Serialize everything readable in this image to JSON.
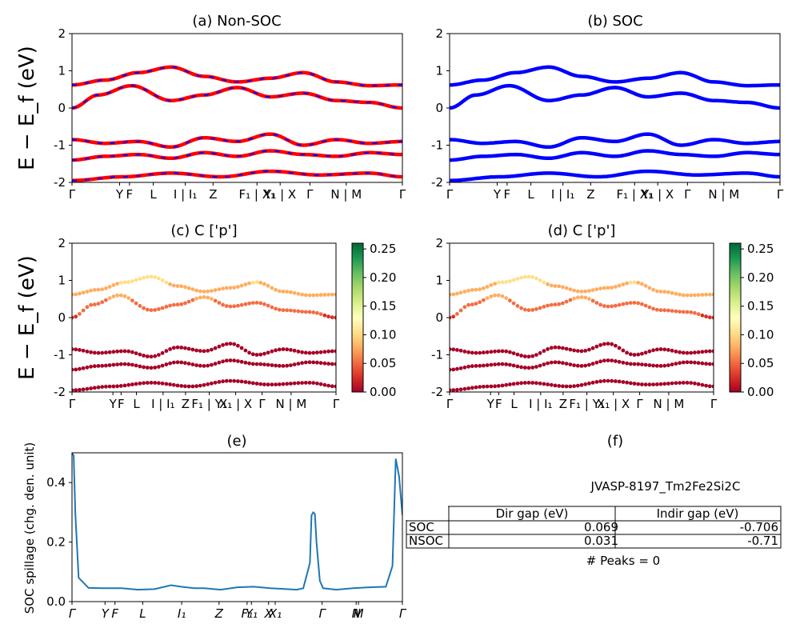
{
  "material_label": "JVASP-8197_Tm2Fe2Si2C",
  "peaks_text": "# Peaks = 0",
  "ylabel_energy": "E − E_f (eV)",
  "colors": {
    "nonsoc_a": "#ff0000",
    "nonsoc_b": "#0000ff",
    "soc": "#0000ff",
    "spillage": "#1f77b4",
    "cmap": [
      "#a50026",
      "#d73027",
      "#f46d43",
      "#fdae61",
      "#fee08b",
      "#ffffbf",
      "#d9ef8b",
      "#a6d96a",
      "#66bd63",
      "#1a9850",
      "#006837"
    ]
  },
  "kpath_labels_ab": [
    "Γ",
    "Y",
    "F",
    "L",
    "I | I₁",
    "Z",
    "F₁ | X₁",
    "Y₁ | X",
    "Γ",
    "N | M",
    "Γ"
  ],
  "kpath_labels_cd": [
    "Γ",
    "Y",
    "F",
    "L",
    "I | I₁",
    "Z",
    "F₁ | Y₁",
    "X₁ | X",
    "Γ",
    "N | M",
    "Γ"
  ],
  "kpath_labels_e": [
    "Γ",
    "Y",
    "F",
    "L",
    "I₁",
    "Z",
    "F₁",
    "Y₁",
    "X",
    "X₁",
    "Γ",
    "N",
    "M",
    "Γ"
  ],
  "chart_data": [
    {
      "id": "a",
      "type": "line",
      "title": "(a) Non-SOC",
      "ylabel": "E − E_f (eV)",
      "ylim": [
        -2,
        2
      ],
      "yticks": [
        -2,
        -1,
        0,
        1,
        2
      ],
      "x_labels": [
        "Γ",
        "Y",
        "F",
        "L",
        "I | I₁",
        "Z",
        "F₁ | X₁",
        "Y₁ | X",
        "Γ",
        "N | M",
        "Γ"
      ],
      "bands": [
        [
          [
            0,
            0.62
          ],
          [
            0.1,
            0.75
          ],
          [
            0.2,
            0.95
          ],
          [
            0.3,
            1.1
          ],
          [
            0.4,
            0.85
          ],
          [
            0.5,
            0.7
          ],
          [
            0.6,
            0.8
          ],
          [
            0.7,
            0.95
          ],
          [
            0.8,
            0.7
          ],
          [
            0.9,
            0.6
          ],
          [
            1,
            0.62
          ]
        ],
        [
          [
            0,
            0.0
          ],
          [
            0.08,
            0.35
          ],
          [
            0.18,
            0.6
          ],
          [
            0.3,
            0.2
          ],
          [
            0.4,
            0.35
          ],
          [
            0.5,
            0.55
          ],
          [
            0.6,
            0.3
          ],
          [
            0.7,
            0.4
          ],
          [
            0.8,
            0.2
          ],
          [
            0.9,
            0.15
          ],
          [
            1,
            0.0
          ]
        ],
        [
          [
            0,
            -0.85
          ],
          [
            0.1,
            -0.95
          ],
          [
            0.2,
            -0.9
          ],
          [
            0.3,
            -1.05
          ],
          [
            0.4,
            -0.8
          ],
          [
            0.5,
            -0.9
          ],
          [
            0.6,
            -0.7
          ],
          [
            0.7,
            -1.0
          ],
          [
            0.8,
            -0.85
          ],
          [
            0.9,
            -0.95
          ],
          [
            1,
            -0.9
          ]
        ],
        [
          [
            0,
            -1.4
          ],
          [
            0.1,
            -1.3
          ],
          [
            0.2,
            -1.25
          ],
          [
            0.3,
            -1.35
          ],
          [
            0.4,
            -1.2
          ],
          [
            0.5,
            -1.3
          ],
          [
            0.6,
            -1.15
          ],
          [
            0.7,
            -1.25
          ],
          [
            0.8,
            -1.3
          ],
          [
            0.9,
            -1.2
          ],
          [
            1,
            -1.25
          ]
        ],
        [
          [
            0,
            -1.95
          ],
          [
            0.15,
            -1.85
          ],
          [
            0.3,
            -1.75
          ],
          [
            0.45,
            -1.85
          ],
          [
            0.6,
            -1.7
          ],
          [
            0.75,
            -1.8
          ],
          [
            0.9,
            -1.75
          ],
          [
            1,
            -1.85
          ]
        ]
      ]
    },
    {
      "id": "b",
      "type": "line",
      "title": "(b) SOC",
      "ylim": [
        -2,
        2
      ],
      "yticks": [
        -2,
        -1,
        0,
        1,
        2
      ],
      "x_labels": [
        "Γ",
        "Y",
        "F",
        "L",
        "I | I₁",
        "Z",
        "F₁ | X₁",
        "Y₁ | X",
        "Γ",
        "N | M",
        "Γ"
      ],
      "bands": [
        [
          [
            0,
            0.62
          ],
          [
            0.1,
            0.75
          ],
          [
            0.2,
            0.95
          ],
          [
            0.3,
            1.1
          ],
          [
            0.4,
            0.85
          ],
          [
            0.5,
            0.7
          ],
          [
            0.6,
            0.8
          ],
          [
            0.7,
            0.95
          ],
          [
            0.8,
            0.7
          ],
          [
            0.9,
            0.6
          ],
          [
            1,
            0.62
          ]
        ],
        [
          [
            0,
            0.0
          ],
          [
            0.08,
            0.35
          ],
          [
            0.18,
            0.6
          ],
          [
            0.3,
            0.2
          ],
          [
            0.4,
            0.35
          ],
          [
            0.5,
            0.55
          ],
          [
            0.6,
            0.3
          ],
          [
            0.7,
            0.4
          ],
          [
            0.8,
            0.2
          ],
          [
            0.9,
            0.15
          ],
          [
            1,
            0.0
          ]
        ],
        [
          [
            0,
            -0.85
          ],
          [
            0.1,
            -0.95
          ],
          [
            0.2,
            -0.9
          ],
          [
            0.3,
            -1.05
          ],
          [
            0.4,
            -0.8
          ],
          [
            0.5,
            -0.9
          ],
          [
            0.6,
            -0.7
          ],
          [
            0.7,
            -1.0
          ],
          [
            0.8,
            -0.85
          ],
          [
            0.9,
            -0.95
          ],
          [
            1,
            -0.9
          ]
        ],
        [
          [
            0,
            -1.4
          ],
          [
            0.1,
            -1.3
          ],
          [
            0.2,
            -1.25
          ],
          [
            0.3,
            -1.35
          ],
          [
            0.4,
            -1.2
          ],
          [
            0.5,
            -1.3
          ],
          [
            0.6,
            -1.15
          ],
          [
            0.7,
            -1.25
          ],
          [
            0.8,
            -1.3
          ],
          [
            0.9,
            -1.2
          ],
          [
            1,
            -1.25
          ]
        ],
        [
          [
            0,
            -1.95
          ],
          [
            0.15,
            -1.85
          ],
          [
            0.3,
            -1.75
          ],
          [
            0.45,
            -1.85
          ],
          [
            0.6,
            -1.7
          ],
          [
            0.75,
            -1.8
          ],
          [
            0.9,
            -1.75
          ],
          [
            1,
            -1.85
          ]
        ]
      ]
    },
    {
      "id": "c",
      "type": "scatter",
      "title": "(c)  C ['p']",
      "ylabel": "E − E_f (eV)",
      "ylim": [
        -2,
        2
      ],
      "yticks": [
        -2,
        -1,
        0,
        1,
        2
      ],
      "colorbar_ticks": [
        0.0,
        0.05,
        0.1,
        0.15,
        0.2,
        0.25
      ],
      "x_labels": [
        "Γ",
        "Y",
        "F",
        "L",
        "I | I₁",
        "Z",
        "F₁ | Y₁",
        "X₁ | X",
        "Γ",
        "N | M",
        "Γ"
      ]
    },
    {
      "id": "d",
      "type": "scatter",
      "title": "(d) C ['p']",
      "ylim": [
        -2,
        2
      ],
      "yticks": [
        -2,
        -1,
        0,
        1,
        2
      ],
      "colorbar_ticks": [
        0.0,
        0.05,
        0.1,
        0.15,
        0.2,
        0.25
      ],
      "x_labels": [
        "Γ",
        "Y",
        "F",
        "L",
        "I | I₁",
        "Z",
        "F₁ | Y₁",
        "X₁ | X",
        "Γ",
        "N | M",
        "Γ"
      ]
    },
    {
      "id": "e",
      "type": "line",
      "title": "(e)",
      "ylabel": "SOC spillage (chg. den. unit)",
      "ylim": [
        0,
        0.5
      ],
      "yticks": [
        0.0,
        0.2,
        0.4
      ],
      "x_labels": [
        "Γ",
        "Y",
        "F",
        "L",
        "I₁",
        "Z",
        "F₁",
        "Y₁",
        "X",
        "X₁",
        "Γ",
        "N",
        "M",
        "Γ"
      ],
      "x": [
        0,
        0.005,
        0.01,
        0.02,
        0.05,
        0.1,
        0.15,
        0.2,
        0.25,
        0.3,
        0.33,
        0.37,
        0.4,
        0.45,
        0.5,
        0.55,
        0.6,
        0.65,
        0.68,
        0.7,
        0.72,
        0.725,
        0.73,
        0.735,
        0.74,
        0.75,
        0.76,
        0.8,
        0.85,
        0.9,
        0.95,
        0.97,
        0.98,
        0.99,
        1.0
      ],
      "y": [
        0.5,
        0.49,
        0.3,
        0.08,
        0.046,
        0.045,
        0.045,
        0.04,
        0.042,
        0.055,
        0.05,
        0.045,
        0.045,
        0.04,
        0.048,
        0.05,
        0.045,
        0.042,
        0.04,
        0.045,
        0.13,
        0.29,
        0.3,
        0.295,
        0.2,
        0.07,
        0.045,
        0.04,
        0.045,
        0.048,
        0.05,
        0.12,
        0.48,
        0.42,
        0.29
      ]
    },
    {
      "id": "f",
      "type": "table",
      "title": "(f)",
      "columns": [
        "",
        "Dir gap (eV)",
        "Indir gap (eV)"
      ],
      "rows": [
        [
          "SOC",
          "0.069",
          "-0.706"
        ],
        [
          "NSOC",
          "0.031",
          "-0.71"
        ]
      ]
    }
  ]
}
